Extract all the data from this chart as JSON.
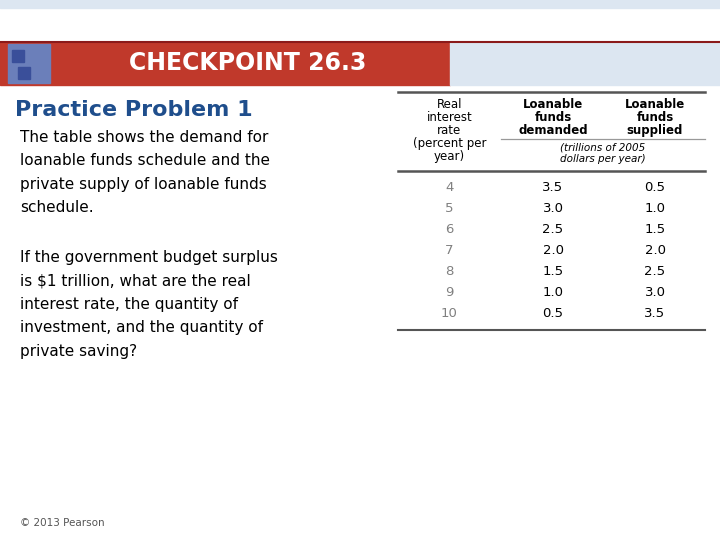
{
  "title": "CHECKPOINT 26.3",
  "subtitle": "Practice Problem 1",
  "paragraph1": "The table shows the demand for\nloanable funds schedule and the\nprivate supply of loanable funds\nschedule.",
  "paragraph2": "If the government budget surplus\nis $1 trillion, what are the real\ninterest rate, the quantity of\ninvestment, and the quantity of\nprivate saving?",
  "footer": "© 2013 Pearson",
  "table_data": [
    [
      4,
      3.5,
      0.5
    ],
    [
      5,
      3.0,
      1.0
    ],
    [
      6,
      2.5,
      1.5
    ],
    [
      7,
      2.0,
      2.0
    ],
    [
      8,
      1.5,
      2.5
    ],
    [
      9,
      1.0,
      3.0
    ],
    [
      10,
      0.5,
      3.5
    ]
  ],
  "bg_color": "#ffffff",
  "header_bg": "#c0392b",
  "title_color": "#ffffff",
  "subtitle_color": "#1f4e8c",
  "body_text_color": "#000000",
  "data_text_color": "#808080",
  "table_line_color": "#999999",
  "table_line_thick": "#555555",
  "top_bar_color": "#dce6f1",
  "right_bar_color": "#dce6f1",
  "icon_color1": "#6b7fba",
  "icon_color2": "#3a4f9a",
  "footer_color": "#555555"
}
